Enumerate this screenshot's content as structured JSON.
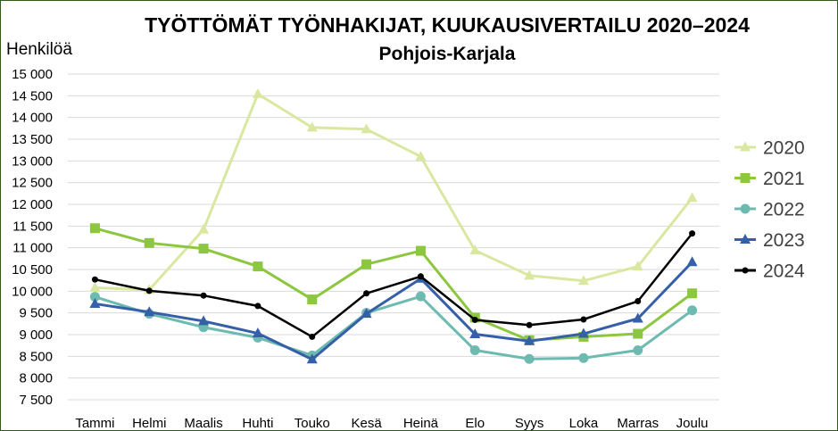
{
  "chart_data": {
    "type": "line",
    "title": "TYÖTTÖMÄT TYÖNHAKIJAT, KUUKAUSIVERTAILU 2020–2024",
    "subtitle": "Pohjois-Karjala",
    "ylabel": "Henkilöä",
    "xlabel": "",
    "categories": [
      "Tammi",
      "Helmi",
      "Maalis",
      "Huhti",
      "Touko",
      "Kesä",
      "Heinä",
      "Elo",
      "Syys",
      "Loka",
      "Marras",
      "Joulu"
    ],
    "ylim": [
      7500,
      15000
    ],
    "ytick_step": 500,
    "ytick_labels": [
      "7 500",
      "8 000",
      "8 500",
      "9 000",
      "9 500",
      "10 000",
      "10 500",
      "11 000",
      "11 500",
      "12 000",
      "12 500",
      "13 000",
      "13 500",
      "14 000",
      "14 500",
      "15 000"
    ],
    "grid": "horizontal",
    "legend_position": "right",
    "series": [
      {
        "name": "2020",
        "color": "#d9e8a0",
        "marker": "triangle",
        "values": [
          10080,
          10030,
          11420,
          14540,
          13770,
          13730,
          13100,
          10940,
          10360,
          10240,
          10570,
          12150
        ]
      },
      {
        "name": "2021",
        "color": "#8dc63f",
        "marker": "square",
        "values": [
          11450,
          11110,
          10980,
          10570,
          9810,
          10620,
          10930,
          9390,
          8870,
          8950,
          9020,
          9950
        ]
      },
      {
        "name": "2022",
        "color": "#6cbab0",
        "marker": "circle",
        "values": [
          9870,
          9480,
          9170,
          8930,
          8520,
          9500,
          9880,
          8640,
          8440,
          8460,
          8640,
          9560
        ]
      },
      {
        "name": "2023",
        "color": "#3560a8",
        "marker": "triangle",
        "values": [
          9710,
          9520,
          9310,
          9030,
          8430,
          9480,
          10290,
          9010,
          8850,
          9020,
          9370,
          10670
        ]
      },
      {
        "name": "2024",
        "color": "#000000",
        "marker": "dot",
        "values": [
          10270,
          10010,
          9900,
          9660,
          8950,
          9950,
          10340,
          9340,
          9220,
          9350,
          9770,
          11330
        ]
      }
    ]
  }
}
